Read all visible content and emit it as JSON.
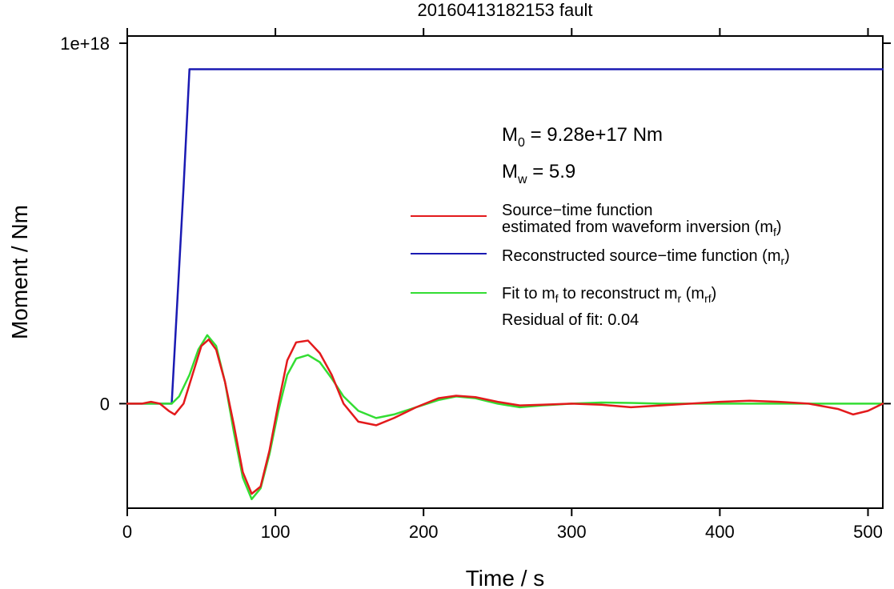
{
  "chart_data": {
    "type": "line",
    "title": "20160413182153 fault",
    "xlabel": "Time / s",
    "ylabel": "Moment / Nm",
    "xlim": [
      0,
      510
    ],
    "ylim": [
      -2.9e+17,
      1.02e+18
    ],
    "x_ticks": [
      0,
      100,
      200,
      300,
      400,
      500
    ],
    "x_tick_labels": [
      "0",
      "100",
      "200",
      "300",
      "400",
      "500"
    ],
    "y_ticks": [
      0,
      1e+18
    ],
    "y_tick_labels": [
      "0",
      "1e+18"
    ],
    "grid": false,
    "legend_position": "right",
    "annotations": {
      "m0_sym": "M",
      "m0_sub": "0",
      "m0_value": " = 9.28e+17 Nm",
      "mw_sym": "M",
      "mw_sub": "w",
      "mw_value": " = 5.9",
      "residual": "Residual of fit: 0.04"
    },
    "legend": [
      {
        "line1": "Source−time function",
        "line2_pre": "estimated from waveform inversion (m",
        "line2_sub": "f",
        "line2_post": ")",
        "color": "#e31a1c"
      },
      {
        "pre": "Reconstructed source−time function (m",
        "sub": "r",
        "post": ")",
        "color": "#1a1ab3"
      },
      {
        "p1": "Fit to m",
        "s1": "f",
        "p2": " to reconstruct m",
        "s2": "r",
        "p3": " (m",
        "s3": "rf",
        "p4": ")",
        "color": "#33dd33"
      }
    ],
    "series": [
      {
        "color": "#1a1ab3",
        "x": [
          0,
          30,
          38,
          42,
          510
        ],
        "y": [
          0,
          0,
          6e+17,
          9.28e+17,
          9.28e+17
        ]
      },
      {
        "color": "#33dd33",
        "x": [
          0,
          30,
          35,
          42,
          48,
          54,
          60,
          66,
          72,
          78,
          84,
          90,
          96,
          102,
          108,
          114,
          122,
          130,
          138,
          146,
          156,
          168,
          180,
          195,
          210,
          222,
          235,
          250,
          265,
          280,
          300,
          320,
          340,
          360,
          380,
          400,
          420,
          440,
          460,
          480,
          500,
          510
        ],
        "y": [
          0,
          0,
          2e+16,
          8e+16,
          1.5e+17,
          1.9e+17,
          1.6e+17,
          6e+16,
          -8e+16,
          -2.05e+17,
          -2.65e+17,
          -2.35e+17,
          -1.4e+17,
          -2e+16,
          8e+16,
          1.25e+17,
          1.35e+17,
          1.15e+17,
          7e+16,
          2e+16,
          -2e+16,
          -4e+16,
          -3e+16,
          -1e+16,
          1e+16,
          2e+16,
          1.5e+16,
          0,
          -1e+16,
          -5000000000000000.0,
          0,
          3000000000000000.0,
          2000000000000000.0,
          0,
          0,
          0,
          0,
          0,
          0,
          0,
          0,
          0
        ]
      },
      {
        "color": "#e31a1c",
        "x": [
          0,
          10,
          16,
          22,
          28,
          32,
          38,
          44,
          50,
          55,
          60,
          66,
          72,
          78,
          84,
          90,
          96,
          102,
          108,
          114,
          122,
          130,
          138,
          146,
          156,
          168,
          180,
          195,
          210,
          222,
          235,
          250,
          265,
          280,
          300,
          320,
          340,
          360,
          380,
          400,
          420,
          440,
          460,
          480,
          490,
          500,
          510
        ],
        "y": [
          0,
          0,
          5000000000000000.0,
          0,
          -2e+16,
          -3e+16,
          0,
          8e+16,
          1.6e+17,
          1.78e+17,
          1.5e+17,
          6e+16,
          -6e+16,
          -1.9e+17,
          -2.5e+17,
          -2.3e+17,
          -1.3e+17,
          0,
          1.2e+17,
          1.7e+17,
          1.75e+17,
          1.4e+17,
          8e+16,
          0,
          -5e+16,
          -6e+16,
          -4e+16,
          -1e+16,
          1.5e+16,
          2.2e+16,
          1.8e+16,
          5000000000000000.0,
          -5000000000000000.0,
          -3000000000000000.0,
          0,
          -3000000000000000.0,
          -1e+16,
          -5000000000000000.0,
          0,
          5000000000000000.0,
          8000000000000000.0,
          5000000000000000.0,
          0,
          -1.5e+16,
          -3e+16,
          -2e+16,
          0
        ]
      }
    ]
  }
}
